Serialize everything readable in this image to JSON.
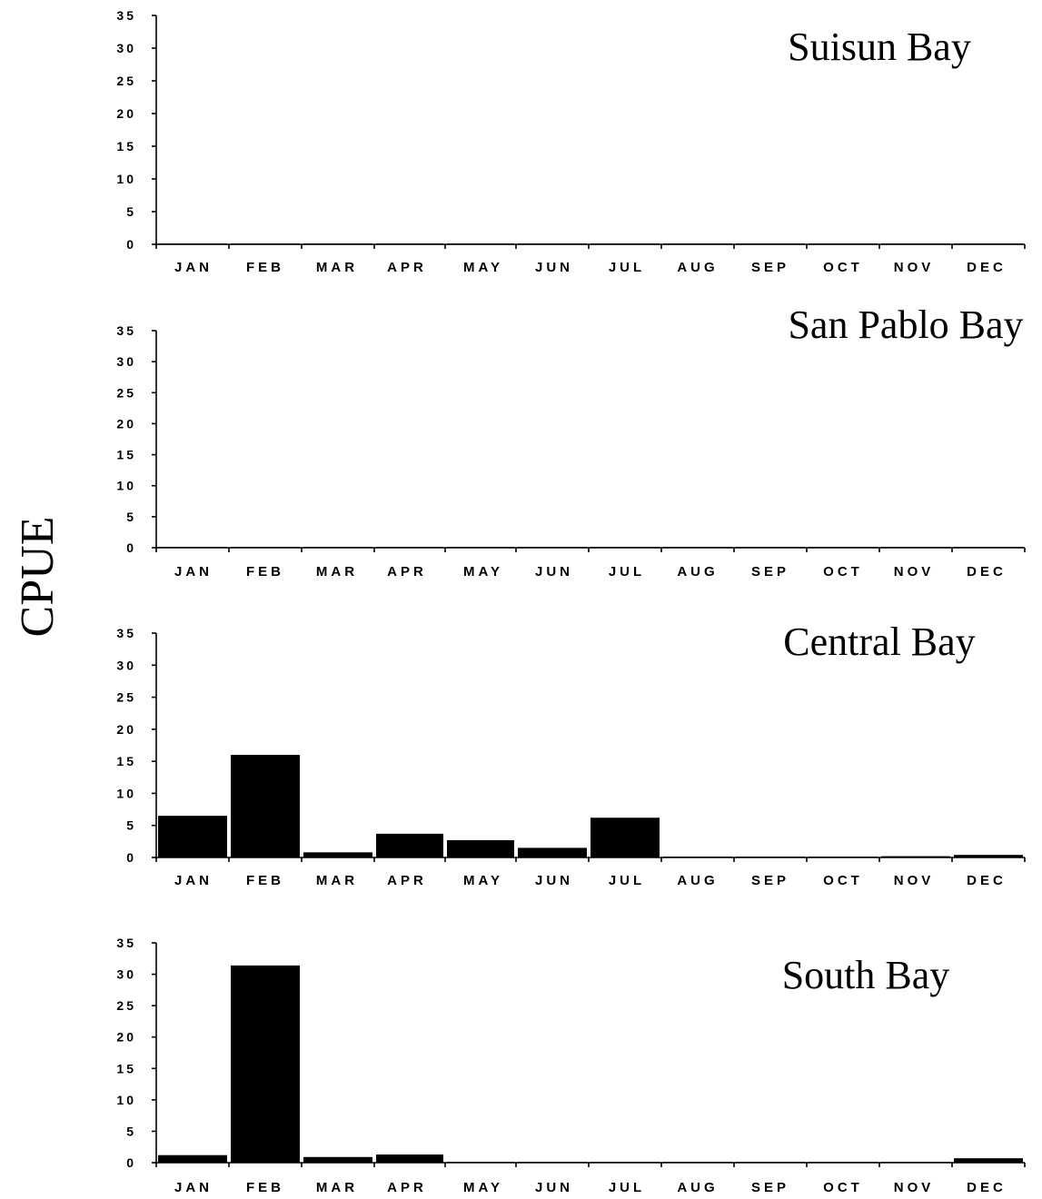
{
  "ylabel": "CPUE",
  "chart_data": [
    {
      "type": "bar",
      "title": "Suisun Bay",
      "categories": [
        "JAN",
        "FEB",
        "MAR",
        "APR",
        "MAY",
        "JUN",
        "JUL",
        "AUG",
        "SEP",
        "OCT",
        "NOV",
        "DEC"
      ],
      "values": [
        0.1,
        0,
        0,
        0,
        0,
        0,
        0,
        0,
        0,
        0,
        0,
        0
      ],
      "ylim": [
        0,
        35
      ],
      "yticks": [
        "35",
        "30",
        "25",
        "20",
        "15",
        "10",
        "5",
        "0"
      ],
      "grid": false
    },
    {
      "type": "bar",
      "title": "San Pablo Bay",
      "categories": [
        "JAN",
        "FEB",
        "MAR",
        "APR",
        "MAY",
        "JUN",
        "JUL",
        "AUG",
        "SEP",
        "OCT",
        "NOV",
        "DEC"
      ],
      "values": [
        0.1,
        0.1,
        0.1,
        0,
        0,
        0,
        0,
        0,
        0,
        0,
        0,
        0
      ],
      "ylim": [
        0,
        35
      ],
      "yticks": [
        "35",
        "30",
        "25",
        "20",
        "15",
        "10",
        "5",
        "0"
      ],
      "grid": false
    },
    {
      "type": "bar",
      "title": "Central Bay",
      "categories": [
        "JAN",
        "FEB",
        "MAR",
        "APR",
        "MAY",
        "JUN",
        "JUL",
        "AUG",
        "SEP",
        "OCT",
        "NOV",
        "DEC"
      ],
      "values": [
        6.5,
        16,
        0.8,
        3.7,
        2.7,
        1.5,
        6.2,
        0.1,
        0.1,
        0.1,
        0.2,
        0.4
      ],
      "ylim": [
        0,
        35
      ],
      "yticks": [
        "35",
        "30",
        "25",
        "20",
        "15",
        "10",
        "5",
        "0"
      ],
      "grid": false
    },
    {
      "type": "bar",
      "title": "South Bay",
      "categories": [
        "JAN",
        "FEB",
        "MAR",
        "APR",
        "MAY",
        "JUN",
        "JUL",
        "AUG",
        "SEP",
        "OCT",
        "NOV",
        "DEC"
      ],
      "values": [
        1.2,
        31.4,
        0.9,
        1.3,
        0.1,
        0.1,
        0.1,
        0.1,
        0.1,
        0.1,
        0.1,
        0.7
      ],
      "ylim": [
        0,
        35
      ],
      "yticks": [
        "35",
        "30",
        "25",
        "20",
        "15",
        "10",
        "5",
        "0"
      ],
      "grid": false
    }
  ]
}
